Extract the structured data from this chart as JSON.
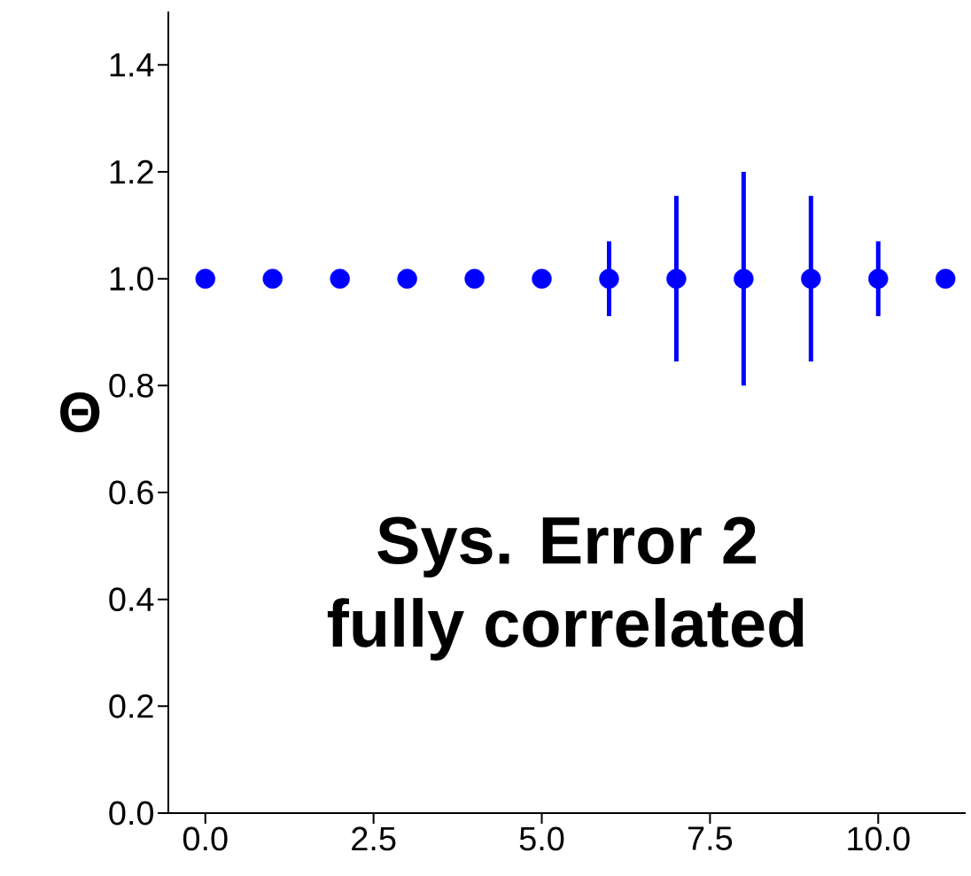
{
  "chart_data": {
    "type": "scatter",
    "ylabel": "Θ",
    "x": [
      0,
      1,
      2,
      3,
      4,
      5,
      6,
      7,
      8,
      9,
      10,
      11
    ],
    "series": [
      {
        "color": "#0000ff",
        "values": [
          1,
          1,
          1,
          1,
          1,
          1,
          1,
          1,
          1,
          1,
          1,
          1
        ],
        "errors": [
          null,
          null,
          null,
          null,
          null,
          0.01,
          0.07,
          0.155,
          0.2,
          0.155,
          0.07,
          0.01
        ]
      }
    ],
    "marker": "circle",
    "xlim": [
      -0.55,
      11.3
    ],
    "ylim": [
      0,
      1.5
    ],
    "xticks": [
      {
        "value": 0,
        "label": "0.0"
      },
      {
        "value": 2.5,
        "label": "2.5"
      },
      {
        "value": 5,
        "label": "5.0"
      },
      {
        "value": 7.5,
        "label": "7.5"
      },
      {
        "value": 10,
        "label": "10.0"
      }
    ],
    "yticks": [
      {
        "value": 0,
        "label": "0.0"
      },
      {
        "value": 0.2,
        "label": "0.2"
      },
      {
        "value": 0.4,
        "label": "0.4"
      },
      {
        "value": 0.6,
        "label": "0.6"
      },
      {
        "value": 0.8,
        "label": "0.8"
      },
      {
        "value": 1.0,
        "label": "1.0"
      },
      {
        "value": 1.2,
        "label": "1.2"
      },
      {
        "value": 1.4,
        "label": "1.4"
      }
    ],
    "annotations": [
      "Sys. Error 2",
      "fully correlated"
    ]
  }
}
